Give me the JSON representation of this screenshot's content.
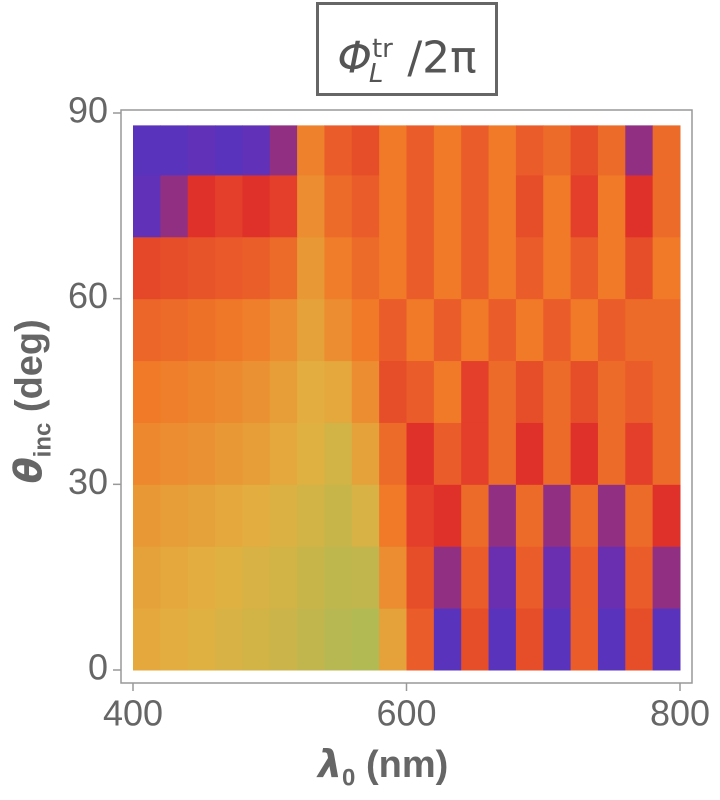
{
  "chart_data": {
    "type": "heatmap",
    "title": {
      "symbol": "Φ",
      "sup": "tr",
      "sub": "L",
      "rest": "/2π"
    },
    "xlabel": {
      "symbol": "λ",
      "sub": "0",
      "rest": " (nm)"
    },
    "ylabel": {
      "symbol": "θ",
      "sub": "inc",
      "rest": " (deg)"
    },
    "xlim": [
      400,
      800
    ],
    "ylim": [
      0,
      90
    ],
    "xticks": [
      400,
      600,
      800
    ],
    "yticks": [
      0,
      30,
      60,
      90
    ],
    "xbins": [
      400,
      420,
      440,
      460,
      480,
      500,
      520,
      540,
      560,
      580,
      600,
      620,
      640,
      660,
      680,
      700,
      720,
      740,
      760,
      780,
      800
    ],
    "ybins": [
      0,
      10,
      20,
      30,
      40,
      50,
      60,
      70,
      80,
      88
    ],
    "colorscale": [
      [
        0,
        "#3b3bd6"
      ],
      [
        0.15,
        "#6a2fb0"
      ],
      [
        0.3,
        "#e0302a"
      ],
      [
        0.55,
        "#f07a28"
      ],
      [
        0.75,
        "#e2b040"
      ],
      [
        1,
        "#90c060"
      ]
    ],
    "z": [
      [
        0.72,
        0.74,
        0.76,
        0.78,
        0.8,
        0.82,
        0.85,
        0.88,
        0.9,
        0.7,
        0.45,
        0.1,
        0.4,
        0.1,
        0.4,
        0.1,
        0.45,
        0.1,
        0.4,
        0.1
      ],
      [
        0.7,
        0.72,
        0.74,
        0.76,
        0.78,
        0.8,
        0.83,
        0.86,
        0.85,
        0.62,
        0.4,
        0.2,
        0.45,
        0.15,
        0.45,
        0.15,
        0.45,
        0.15,
        0.45,
        0.2
      ],
      [
        0.66,
        0.68,
        0.7,
        0.72,
        0.74,
        0.77,
        0.8,
        0.83,
        0.78,
        0.55,
        0.35,
        0.3,
        0.5,
        0.2,
        0.5,
        0.2,
        0.5,
        0.2,
        0.5,
        0.3
      ],
      [
        0.6,
        0.62,
        0.64,
        0.66,
        0.68,
        0.72,
        0.76,
        0.8,
        0.7,
        0.5,
        0.3,
        0.45,
        0.35,
        0.5,
        0.3,
        0.5,
        0.3,
        0.5,
        0.35,
        0.5
      ],
      [
        0.55,
        0.57,
        0.59,
        0.61,
        0.64,
        0.68,
        0.74,
        0.72,
        0.62,
        0.4,
        0.45,
        0.55,
        0.35,
        0.5,
        0.4,
        0.5,
        0.4,
        0.5,
        0.45,
        0.5
      ],
      [
        0.48,
        0.5,
        0.52,
        0.54,
        0.57,
        0.62,
        0.7,
        0.62,
        0.55,
        0.45,
        0.55,
        0.45,
        0.55,
        0.45,
        0.55,
        0.45,
        0.55,
        0.45,
        0.5,
        0.5
      ],
      [
        0.38,
        0.4,
        0.42,
        0.44,
        0.46,
        0.5,
        0.66,
        0.56,
        0.5,
        0.55,
        0.45,
        0.55,
        0.45,
        0.55,
        0.45,
        0.55,
        0.45,
        0.55,
        0.4,
        0.55
      ],
      [
        0.12,
        0.2,
        0.3,
        0.35,
        0.3,
        0.35,
        0.62,
        0.5,
        0.45,
        0.55,
        0.45,
        0.55,
        0.45,
        0.55,
        0.4,
        0.55,
        0.35,
        0.55,
        0.3,
        0.5
      ],
      [
        0.1,
        0.1,
        0.12,
        0.1,
        0.12,
        0.2,
        0.58,
        0.45,
        0.4,
        0.55,
        0.45,
        0.55,
        0.45,
        0.55,
        0.45,
        0.5,
        0.4,
        0.5,
        0.2,
        0.5
      ]
    ]
  }
}
